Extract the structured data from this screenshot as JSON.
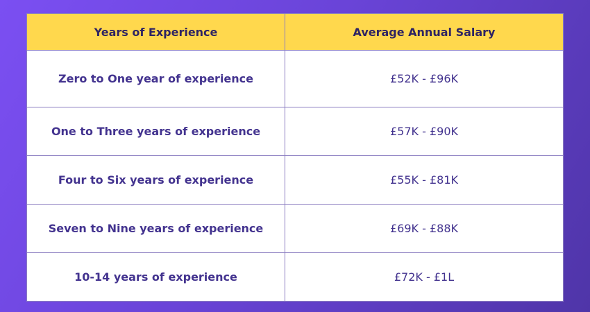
{
  "table": {
    "headers": {
      "experience": "Years of Experience",
      "salary": "Average Annual Salary"
    },
    "rows": [
      {
        "experience": "Zero to One year of experience",
        "salary": "£52K - £96K"
      },
      {
        "experience": "One to Three years of experience",
        "salary": "£57K - £90K"
      },
      {
        "experience": "Four to Six years of experience",
        "salary": "£55K - £81K"
      },
      {
        "experience": "Seven to Nine years of experience",
        "salary": "£69K - £88K"
      },
      {
        "experience": "10-14 years of experience",
        "salary": "£72K - £1L"
      }
    ]
  },
  "colors": {
    "header_background": "#ffd84d",
    "text": "#43338f",
    "background_gradient_start": "#7b4ff2",
    "background_gradient_end": "#4f35a8"
  }
}
